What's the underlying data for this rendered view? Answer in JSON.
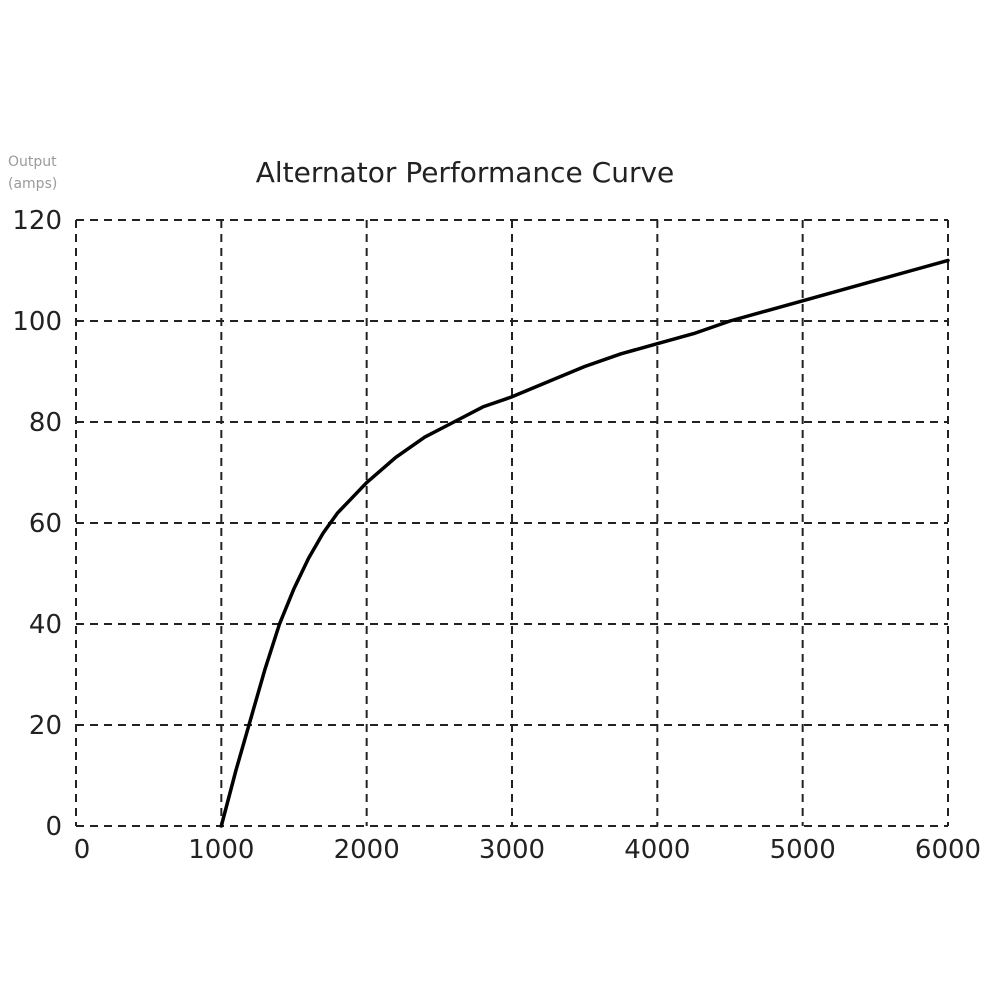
{
  "chart_data": {
    "type": "line",
    "title": "Alternator Performance Curve",
    "ylabel_lines": [
      "Output",
      "(amps)"
    ],
    "xlabel": "",
    "xlim": [
      0,
      6000
    ],
    "ylim": [
      0,
      120
    ],
    "x_ticks": [
      0,
      1000,
      2000,
      3000,
      4000,
      5000,
      6000
    ],
    "y_ticks": [
      0,
      20,
      40,
      60,
      80,
      100,
      120
    ],
    "grid": true,
    "grid_style": "dashed",
    "series": [
      {
        "color": "#000000",
        "x": [
          1000,
          1100,
          1200,
          1300,
          1400,
          1500,
          1600,
          1700,
          1800,
          1900,
          2000,
          2200,
          2400,
          2600,
          2800,
          3000,
          3250,
          3500,
          3750,
          4000,
          4250,
          4500,
          4750,
          5000,
          5250,
          5500,
          5750,
          6000
        ],
        "y": [
          0,
          11,
          21,
          31,
          40,
          47,
          53,
          58,
          62,
          65,
          68,
          73,
          77,
          80,
          83,
          85,
          88,
          91,
          93.5,
          95.5,
          97.5,
          100,
          102,
          104,
          106,
          108,
          110,
          112
        ]
      }
    ]
  }
}
